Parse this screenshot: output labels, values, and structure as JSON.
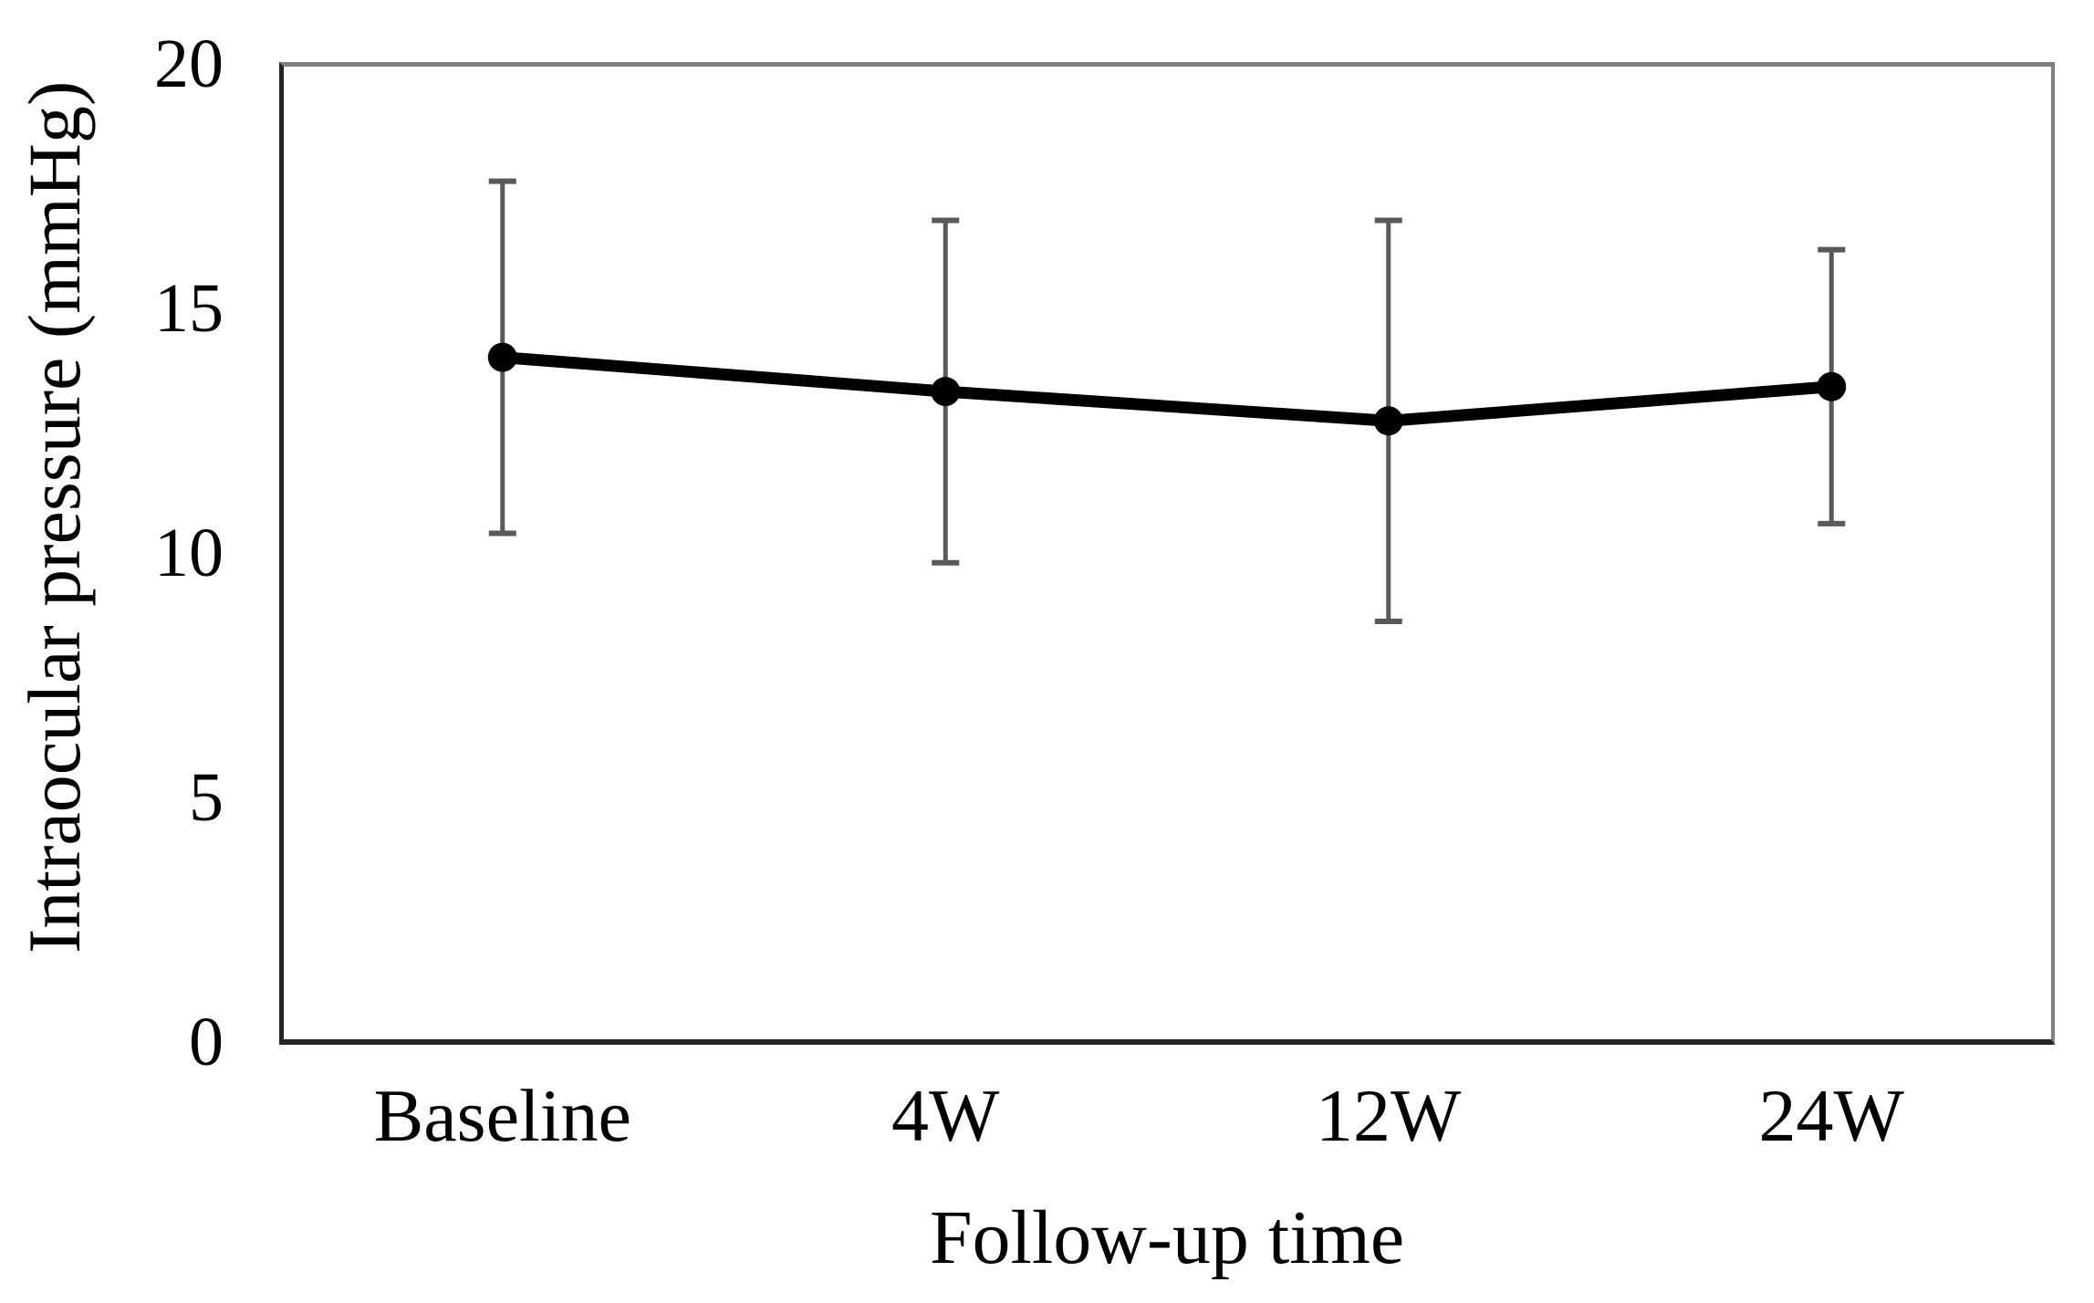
{
  "figure": {
    "background": "#ffffff",
    "text_color": "#000000"
  },
  "chart_data": {
    "type": "line",
    "title": "",
    "xlabel": "Follow-up time",
    "ylabel": "Intraocular pressure (mmHg)",
    "categories": [
      "Baseline",
      "4W",
      "12W",
      "24W"
    ],
    "series": [
      {
        "name": "Intraocular pressure",
        "values": [
          14.0,
          13.3,
          12.7,
          13.4
        ],
        "error_upper": [
          17.6,
          16.8,
          16.8,
          16.2
        ],
        "error_lower": [
          10.4,
          9.8,
          8.6,
          10.6
        ]
      }
    ],
    "ylim": [
      0,
      20
    ],
    "yticks": [
      20,
      15,
      10,
      5,
      0
    ],
    "grid": false,
    "legend": "none",
    "colors": {
      "line": "#000000",
      "marker": "#000000",
      "error_bar": "#595959",
      "frame_top": "#808080",
      "frame_right": "#808080",
      "frame_left": "#262626",
      "frame_bottom": "#262626"
    }
  }
}
